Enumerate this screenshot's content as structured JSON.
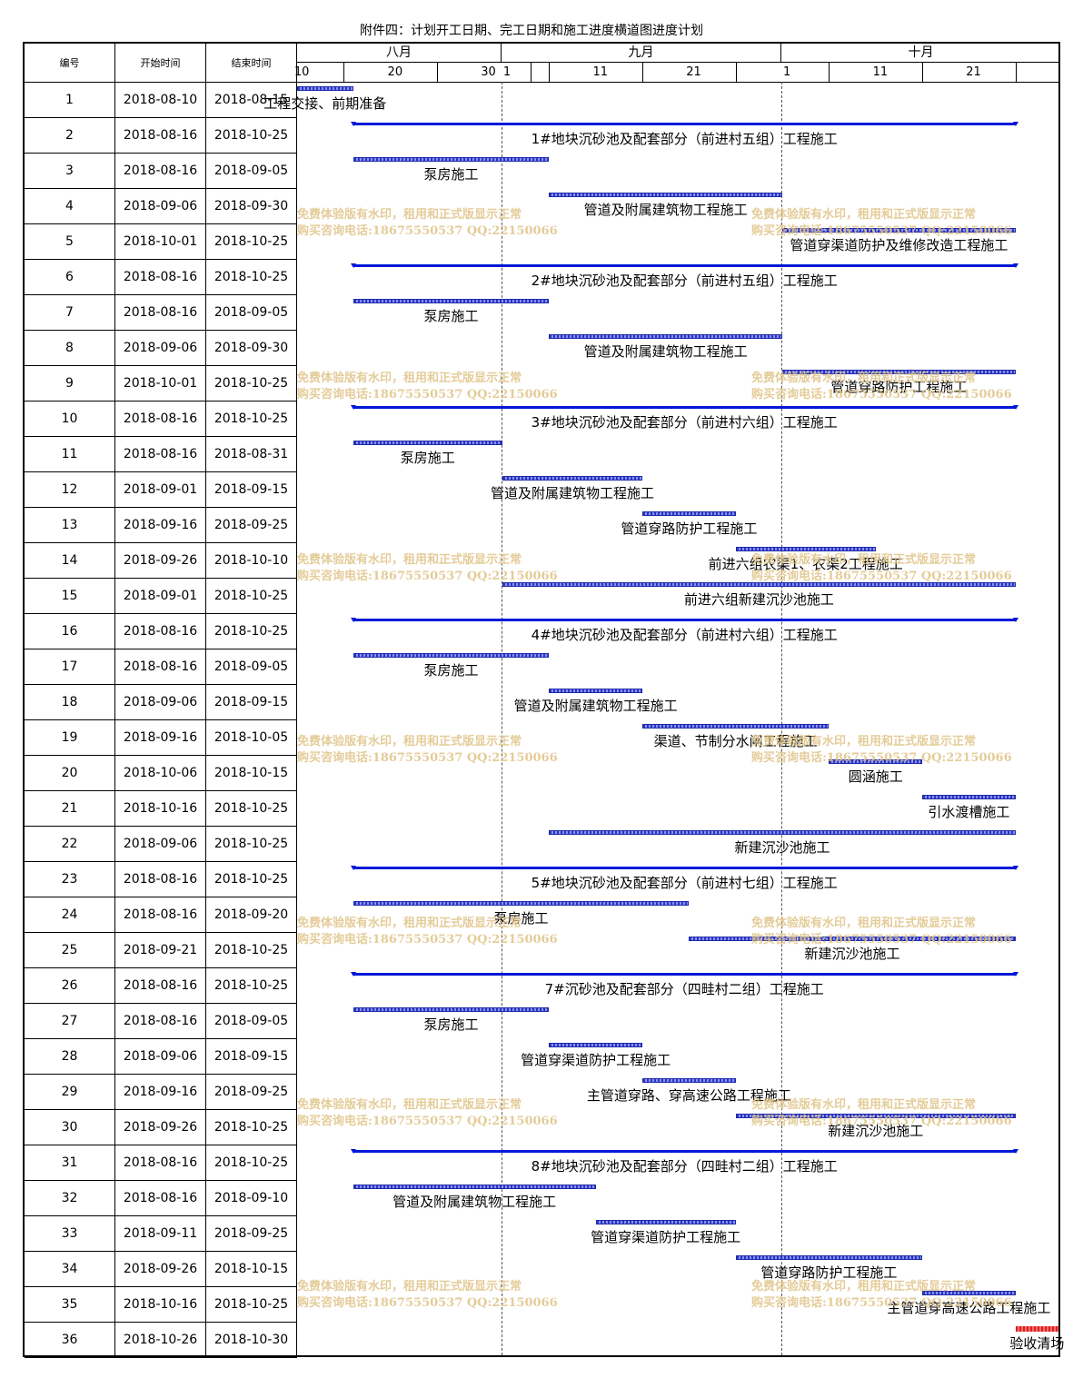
{
  "title": "附件四：计划开工日期、完工日期和施工进度横道图进度计划",
  "headers": {
    "no": "编号",
    "start": "开始时间",
    "end": "结束时间"
  },
  "months": [
    "八月",
    "九月",
    "十月"
  ],
  "ticks": [
    "10",
    "20",
    "30",
    "1",
    "11",
    "21",
    "1",
    "11",
    "21"
  ],
  "watermark": {
    "line1": "免费体验版有水印，租用和正式版显示正常",
    "line2": "购买咨询电话:18675550537 QQ:22150066"
  },
  "colors": {
    "task_bar": "#3b46d0",
    "summary_bar": "#0018d8",
    "final_bar": "#e02020",
    "watermark": "#e0c488"
  },
  "rows": [
    {
      "no": "1",
      "start": "2018-08-10",
      "end": "2018-08-15",
      "label": "工程交接、前期准备",
      "kind": "task"
    },
    {
      "no": "2",
      "start": "2018-08-16",
      "end": "2018-10-25",
      "label": "1#地块沉砂池及配套部分（前进村五组）工程施工",
      "kind": "summary"
    },
    {
      "no": "3",
      "start": "2018-08-16",
      "end": "2018-09-05",
      "label": "泵房施工",
      "kind": "task"
    },
    {
      "no": "4",
      "start": "2018-09-06",
      "end": "2018-09-30",
      "label": "管道及附属建筑物工程施工",
      "kind": "task"
    },
    {
      "no": "5",
      "start": "2018-10-01",
      "end": "2018-10-25",
      "label": "管道穿渠道防护及维修改造工程施工",
      "kind": "task"
    },
    {
      "no": "6",
      "start": "2018-08-16",
      "end": "2018-10-25",
      "label": "2#地块沉砂池及配套部分（前进村五组）工程施工",
      "kind": "summary"
    },
    {
      "no": "7",
      "start": "2018-08-16",
      "end": "2018-09-05",
      "label": "泵房施工",
      "kind": "task"
    },
    {
      "no": "8",
      "start": "2018-09-06",
      "end": "2018-09-30",
      "label": "管道及附属建筑物工程施工",
      "kind": "task"
    },
    {
      "no": "9",
      "start": "2018-10-01",
      "end": "2018-10-25",
      "label": "管道穿路防护工程施工",
      "kind": "task"
    },
    {
      "no": "10",
      "start": "2018-08-16",
      "end": "2018-10-25",
      "label": "3#地块沉砂池及配套部分（前进村六组）工程施工",
      "kind": "summary"
    },
    {
      "no": "11",
      "start": "2018-08-16",
      "end": "2018-08-31",
      "label": "泵房施工",
      "kind": "task"
    },
    {
      "no": "12",
      "start": "2018-09-01",
      "end": "2018-09-15",
      "label": "管道及附属建筑物工程施工",
      "kind": "task"
    },
    {
      "no": "13",
      "start": "2018-09-16",
      "end": "2018-09-25",
      "label": "管道穿路防护工程施工",
      "kind": "task"
    },
    {
      "no": "14",
      "start": "2018-09-26",
      "end": "2018-10-10",
      "label": "前进六组农渠1、农渠2工程施工",
      "kind": "task"
    },
    {
      "no": "15",
      "start": "2018-09-01",
      "end": "2018-10-25",
      "label": "前进六组新建沉沙池施工",
      "kind": "task"
    },
    {
      "no": "16",
      "start": "2018-08-16",
      "end": "2018-10-25",
      "label": "4#地块沉砂池及配套部分（前进村六组）工程施工",
      "kind": "summary"
    },
    {
      "no": "17",
      "start": "2018-08-16",
      "end": "2018-09-05",
      "label": "泵房施工",
      "kind": "task"
    },
    {
      "no": "18",
      "start": "2018-09-06",
      "end": "2018-09-15",
      "label": "管道及附属建筑物工程施工",
      "kind": "task"
    },
    {
      "no": "19",
      "start": "2018-09-16",
      "end": "2018-10-05",
      "label": "渠道、节制分水闸工程施工",
      "kind": "task"
    },
    {
      "no": "20",
      "start": "2018-10-06",
      "end": "2018-10-15",
      "label": "圆涵施工",
      "kind": "task"
    },
    {
      "no": "21",
      "start": "2018-10-16",
      "end": "2018-10-25",
      "label": "引水渡槽施工",
      "kind": "task"
    },
    {
      "no": "22",
      "start": "2018-09-06",
      "end": "2018-10-25",
      "label": "新建沉沙池施工",
      "kind": "task"
    },
    {
      "no": "23",
      "start": "2018-08-16",
      "end": "2018-10-25",
      "label": "5#地块沉砂池及配套部分（前进村七组）工程施工",
      "kind": "summary"
    },
    {
      "no": "24",
      "start": "2018-08-16",
      "end": "2018-09-20",
      "label": "泵房施工",
      "kind": "task"
    },
    {
      "no": "25",
      "start": "2018-09-21",
      "end": "2018-10-25",
      "label": "新建沉沙池施工",
      "kind": "task"
    },
    {
      "no": "26",
      "start": "2018-08-16",
      "end": "2018-10-25",
      "label": "7#沉砂池及配套部分（四畦村二组）工程施工",
      "kind": "summary"
    },
    {
      "no": "27",
      "start": "2018-08-16",
      "end": "2018-09-05",
      "label": "泵房施工",
      "kind": "task"
    },
    {
      "no": "28",
      "start": "2018-09-06",
      "end": "2018-09-15",
      "label": "管道穿渠道防护工程施工",
      "kind": "task"
    },
    {
      "no": "29",
      "start": "2018-09-16",
      "end": "2018-09-25",
      "label": "主管道穿路、穿高速公路工程施工",
      "kind": "task"
    },
    {
      "no": "30",
      "start": "2018-09-26",
      "end": "2018-10-25",
      "label": "新建沉沙池施工",
      "kind": "task"
    },
    {
      "no": "31",
      "start": "2018-08-16",
      "end": "2018-10-25",
      "label": "8#地块沉砂池及配套部分（四畦村二组）工程施工",
      "kind": "summary"
    },
    {
      "no": "32",
      "start": "2018-08-16",
      "end": "2018-09-10",
      "label": "管道及附属建筑物工程施工",
      "kind": "task"
    },
    {
      "no": "33",
      "start": "2018-09-11",
      "end": "2018-09-25",
      "label": "管道穿渠道防护工程施工",
      "kind": "task"
    },
    {
      "no": "34",
      "start": "2018-09-26",
      "end": "2018-10-15",
      "label": "管道穿路防护工程施工",
      "kind": "task"
    },
    {
      "no": "35",
      "start": "2018-10-16",
      "end": "2018-10-25",
      "label": "主管道穿高速公路工程施工",
      "kind": "task"
    },
    {
      "no": "36",
      "start": "2018-10-26",
      "end": "2018-10-30",
      "label": "验收清场",
      "kind": "final"
    }
  ]
}
